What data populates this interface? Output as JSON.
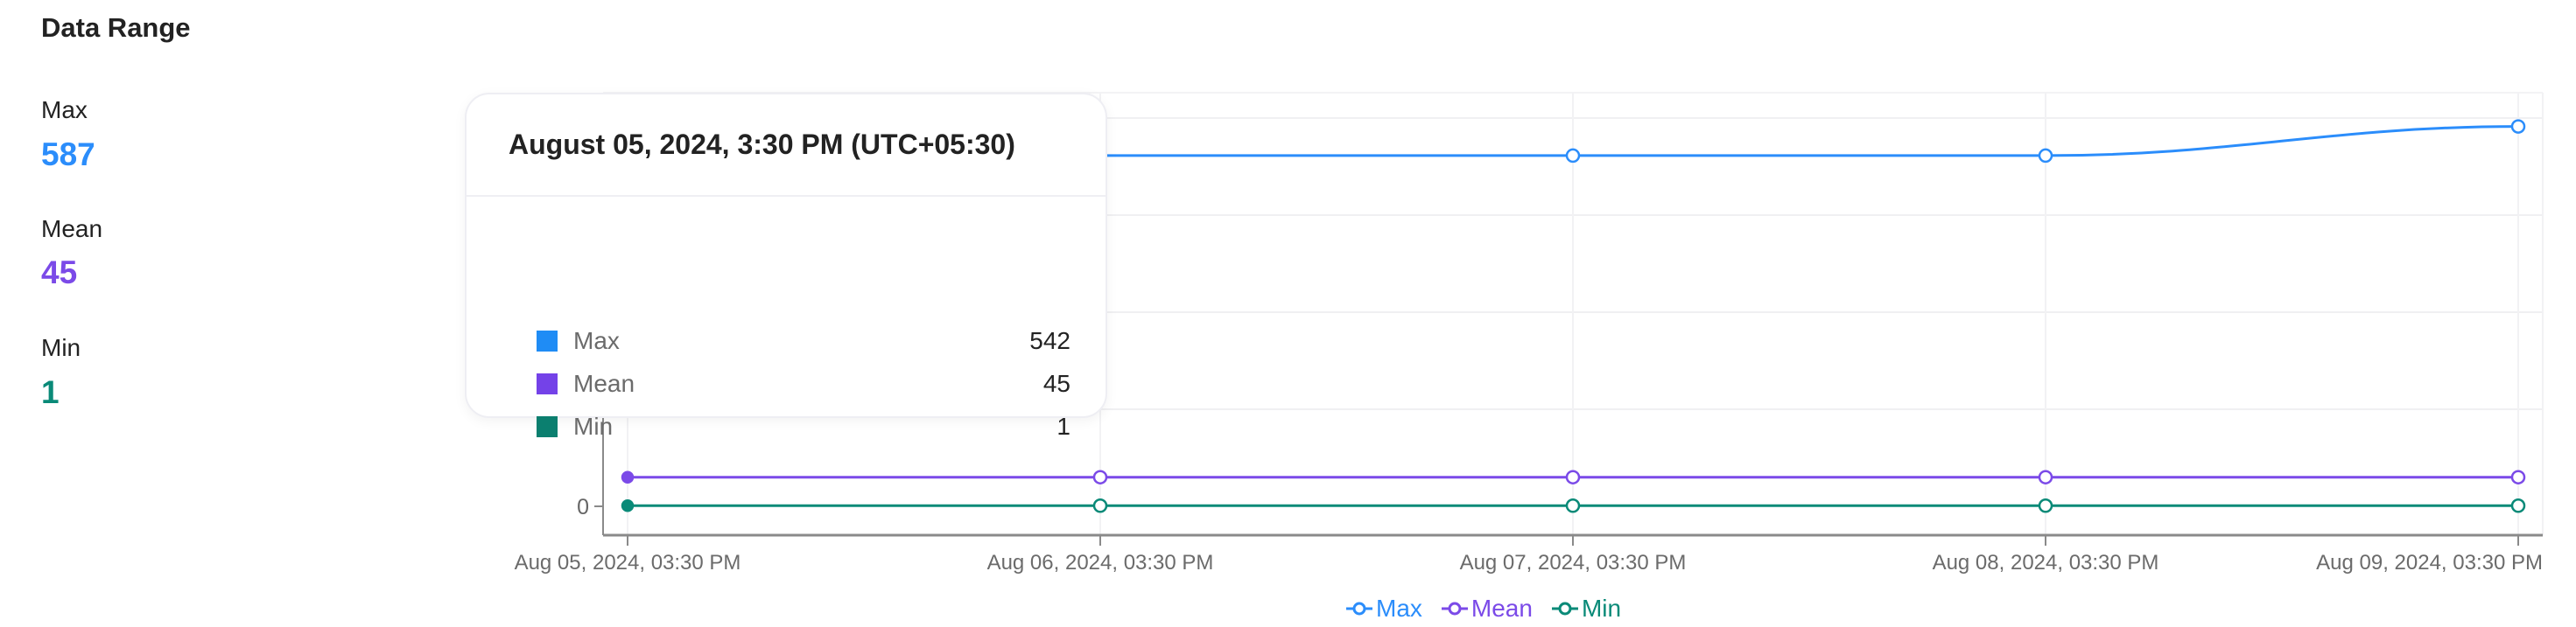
{
  "title": "Data Range",
  "stats": [
    {
      "label": "Max",
      "value": "587",
      "color": "#2b8dfb"
    },
    {
      "label": "Mean",
      "value": "45",
      "color": "#7b4ae8"
    },
    {
      "label": "Min",
      "value": "1",
      "color": "#0a8a78"
    }
  ],
  "tooltip": {
    "header": "August 05, 2024, 3:30 PM (UTC+05:30)",
    "rows": [
      {
        "name": "Max",
        "value": "542",
        "color": "#1f8cf5"
      },
      {
        "name": "Mean",
        "value": "45",
        "color": "#7442e8"
      },
      {
        "name": "Min",
        "value": "1",
        "color": "#0b7f6f"
      }
    ]
  },
  "chart_data": {
    "type": "line",
    "categories": [
      "Aug 05, 2024, 03:30 PM",
      "Aug 06, 2024, 03:30 PM",
      "Aug 07, 2024, 03:30 PM",
      "Aug 08, 2024, 03:30 PM",
      "Aug 09, 2024, 03:30 PM"
    ],
    "series": [
      {
        "name": "Max",
        "values": [
          542,
          542,
          542,
          542,
          587
        ],
        "color": "#2b8dfb"
      },
      {
        "name": "Mean",
        "values": [
          45,
          45,
          45,
          45,
          45
        ],
        "color": "#7b4ae8"
      },
      {
        "name": "Min",
        "values": [
          1,
          1,
          1,
          1,
          1
        ],
        "color": "#0a8a78"
      }
    ],
    "y_ticks": [
      "0"
    ],
    "ylim": [
      0,
      660
    ],
    "grid": true,
    "legend": "bottom-center",
    "xlabel": "",
    "ylabel": ""
  }
}
